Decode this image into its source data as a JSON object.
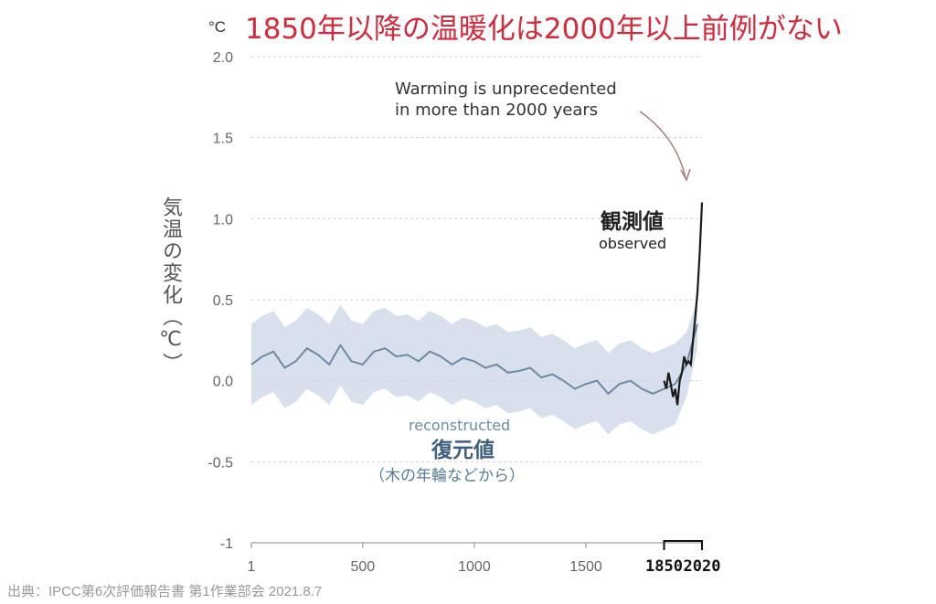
{
  "title": "1850年以降の温暖化は2000年以上前例がない",
  "unit_top": "°C",
  "ylabel": "気温の変化（℃）",
  "source": "出典：IPCC第6次評価報告書 第1作業部会 2021.8.7",
  "annotations": {
    "warming_line1": "Warming is unprecedented",
    "warming_line2": "in more than 2000 years",
    "observed_ja": "観測値",
    "observed_en": "observed",
    "reconstructed_en": "reconstructed",
    "reconstructed_ja": "復元値",
    "reconstructed_note": "（木の年輪などから）"
  },
  "colors": {
    "title": "#d42a3c",
    "reconstructed_line": "#6e8aa3",
    "reconstructed_band": "#c9d6e6",
    "observed_line": "#1a1a1a",
    "grid": "#e8c9c9"
  },
  "chart_data": {
    "type": "line",
    "title": "1850年以降の温暖化は2000年以上前例がない",
    "ylabel": "気温の変化（℃）",
    "xlim": [
      1,
      2020
    ],
    "ylim": [
      -1,
      2
    ],
    "yticks": [
      {
        "v": 2.0,
        "label": "2.0"
      },
      {
        "v": 1.5,
        "label": "1.5"
      },
      {
        "v": 1.0,
        "label": "1.0"
      },
      {
        "v": 0.5,
        "label": "0.5"
      },
      {
        "v": 0.0,
        "label": "0.0"
      },
      {
        "v": -0.5,
        "label": "-0.5"
      },
      {
        "v": -1.0,
        "label": "-1"
      }
    ],
    "xticks": [
      {
        "v": 1,
        "label": "1",
        "bold": false
      },
      {
        "v": 500,
        "label": "500",
        "bold": false
      },
      {
        "v": 1000,
        "label": "1000",
        "bold": false
      },
      {
        "v": 1500,
        "label": "1500",
        "bold": false
      },
      {
        "v": 1850,
        "label": "1850",
        "bold": true
      },
      {
        "v": 2020,
        "label": "2020",
        "bold": true
      }
    ],
    "grid": true,
    "series": [
      {
        "name": "reconstructed",
        "x": [
          1,
          50,
          100,
          150,
          200,
          250,
          300,
          350,
          400,
          450,
          500,
          550,
          600,
          650,
          700,
          750,
          800,
          850,
          900,
          950,
          1000,
          1050,
          1100,
          1150,
          1200,
          1250,
          1300,
          1350,
          1400,
          1450,
          1500,
          1550,
          1600,
          1650,
          1700,
          1750,
          1800,
          1850,
          1900,
          1950,
          2000
        ],
        "y": [
          0.1,
          0.15,
          0.18,
          0.08,
          0.12,
          0.2,
          0.16,
          0.1,
          0.22,
          0.12,
          0.1,
          0.18,
          0.2,
          0.15,
          0.16,
          0.12,
          0.18,
          0.15,
          0.1,
          0.14,
          0.12,
          0.08,
          0.1,
          0.05,
          0.06,
          0.08,
          0.02,
          0.04,
          0.0,
          -0.05,
          -0.02,
          0.0,
          -0.08,
          -0.02,
          0.0,
          -0.05,
          -0.08,
          -0.05,
          -0.02,
          0.1,
          0.35
        ],
        "band": [
          0.25,
          0.25,
          0.25,
          0.25,
          0.25,
          0.25,
          0.25,
          0.25,
          0.25,
          0.25,
          0.25,
          0.25,
          0.25,
          0.25,
          0.25,
          0.25,
          0.25,
          0.25,
          0.25,
          0.25,
          0.25,
          0.25,
          0.25,
          0.25,
          0.25,
          0.25,
          0.25,
          0.25,
          0.25,
          0.25,
          0.25,
          0.25,
          0.25,
          0.25,
          0.25,
          0.25,
          0.25,
          0.25,
          0.25,
          0.2,
          0.15
        ]
      },
      {
        "name": "observed",
        "x": [
          1850,
          1860,
          1870,
          1880,
          1890,
          1900,
          1910,
          1920,
          1930,
          1940,
          1950,
          1960,
          1970,
          1980,
          1990,
          2000,
          2010,
          2020
        ],
        "y": [
          0.0,
          -0.05,
          0.05,
          -0.02,
          -0.1,
          -0.05,
          -0.15,
          0.0,
          0.05,
          0.15,
          0.1,
          0.12,
          0.1,
          0.25,
          0.4,
          0.55,
          0.8,
          1.1
        ]
      }
    ]
  }
}
